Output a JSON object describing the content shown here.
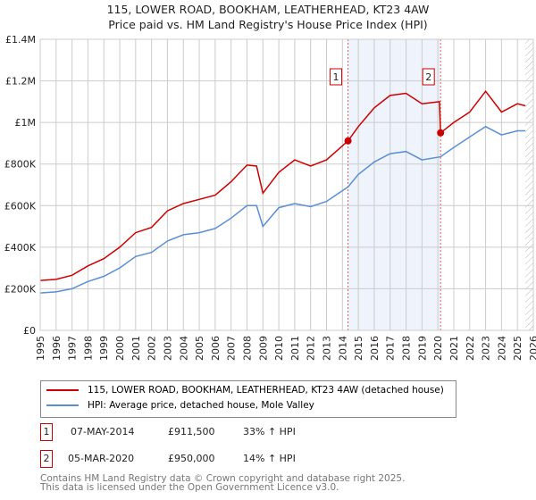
{
  "chart_data": {
    "type": "line",
    "title": "115, LOWER ROAD, BOOKHAM, LEATHERHEAD, KT23 4AW",
    "subtitle": "Price paid vs. HM Land Registry's House Price Index (HPI)",
    "xlim": [
      1995,
      2026
    ],
    "ylim": [
      0,
      1400000
    ],
    "x_ticks": [
      "1995",
      "1996",
      "1997",
      "1998",
      "1999",
      "2000",
      "2001",
      "2002",
      "2003",
      "2004",
      "2005",
      "2006",
      "2007",
      "2008",
      "2009",
      "2010",
      "2011",
      "2012",
      "2013",
      "2014",
      "2015",
      "2016",
      "2017",
      "2018",
      "2019",
      "2020",
      "2021",
      "2022",
      "2023",
      "2024",
      "2025",
      "2026"
    ],
    "y_ticks": [
      {
        "v": 0,
        "label": "£0"
      },
      {
        "v": 200000,
        "label": "£200K"
      },
      {
        "v": 400000,
        "label": "£400K"
      },
      {
        "v": 600000,
        "label": "£600K"
      },
      {
        "v": 800000,
        "label": "£800K"
      },
      {
        "v": 1000000,
        "label": "£1M"
      },
      {
        "v": 1200000,
        "label": "£1.2M"
      },
      {
        "v": 1400000,
        "label": "£1.4M"
      }
    ],
    "grid": true,
    "series": [
      {
        "name": "115, LOWER ROAD, BOOKHAM, LEATHERHEAD, KT23 4AW (detached house)",
        "color": "#cc0000",
        "x": [
          1995,
          1996,
          1997,
          1998,
          1999,
          2000,
          2001,
          2002,
          2003,
          2004,
          2005,
          2006,
          2007,
          2008,
          2008.6,
          2009,
          2010,
          2011,
          2012,
          2013,
          2014.35,
          2015,
          2016,
          2017,
          2018,
          2019,
          2020.1,
          2020.17,
          2021,
          2022,
          2023,
          2024,
          2025,
          2025.5
        ],
        "y": [
          240000,
          245000,
          265000,
          310000,
          345000,
          400000,
          470000,
          495000,
          575000,
          610000,
          630000,
          650000,
          715000,
          795000,
          790000,
          660000,
          760000,
          820000,
          790000,
          820000,
          911500,
          980000,
          1070000,
          1130000,
          1140000,
          1090000,
          1100000,
          950000,
          1000000,
          1050000,
          1150000,
          1050000,
          1090000,
          1080000
        ]
      },
      {
        "name": "HPI: Average price, detached house, Mole Valley",
        "color": "#5b8fd4",
        "x": [
          1995,
          1996,
          1997,
          1998,
          1999,
          2000,
          2001,
          2002,
          2003,
          2004,
          2005,
          2006,
          2007,
          2008,
          2008.6,
          2009,
          2010,
          2011,
          2012,
          2013,
          2014.35,
          2015,
          2016,
          2017,
          2018,
          2019,
          2020.17,
          2021,
          2022,
          2023,
          2024,
          2025,
          2025.5
        ],
        "y": [
          180000,
          185000,
          200000,
          235000,
          260000,
          300000,
          355000,
          375000,
          430000,
          460000,
          470000,
          490000,
          540000,
          600000,
          600000,
          500000,
          590000,
          610000,
          595000,
          620000,
          690000,
          750000,
          810000,
          850000,
          860000,
          820000,
          835000,
          880000,
          930000,
          980000,
          940000,
          960000,
          960000
        ]
      }
    ],
    "annotations": [
      {
        "label": "1",
        "x": 2014.35,
        "y": 911500,
        "date": "07-MAY-2014",
        "price": "£911,500",
        "hpi": "33% ↑ HPI"
      },
      {
        "label": "2",
        "x": 2020.17,
        "y": 950000,
        "date": "05-MAR-2020",
        "price": "£950,000",
        "hpi": "14% ↑ HPI"
      }
    ],
    "shaded_range": [
      2014.35,
      2020.17
    ],
    "hatched_from": 2025.5,
    "legend_position": "below"
  },
  "footer": {
    "line1": "Contains HM Land Registry data © Crown copyright and database right 2025.",
    "line2": "This data is licensed under the Open Government Licence v3.0."
  }
}
